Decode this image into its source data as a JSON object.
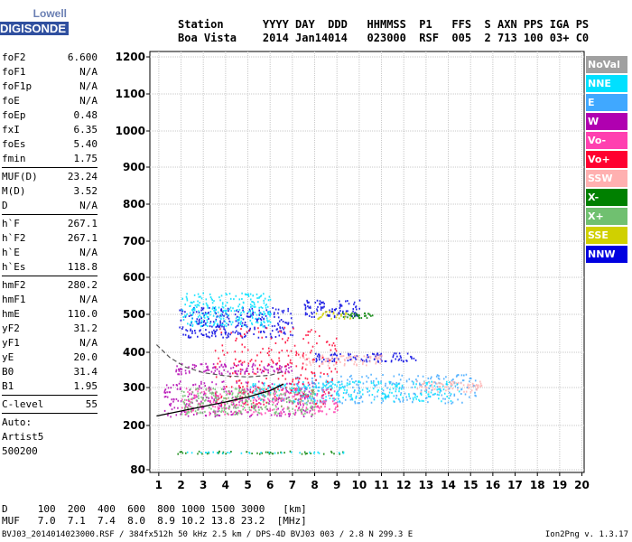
{
  "logo": {
    "line1": "Lowell",
    "line2": "DIGISONDE"
  },
  "header": {
    "row1": [
      "Station",
      "YYYY",
      "DAY",
      "DDD",
      "HHMMSS",
      "P1",
      "FFS",
      "S",
      "AXN",
      "PPS",
      "IGA",
      "PS"
    ],
    "row2": [
      "Boa Vista",
      "2014",
      "Jan14",
      "014",
      "023000",
      "RSF",
      "005",
      "2",
      "713",
      "100",
      "03+",
      "C0"
    ]
  },
  "params": [
    {
      "name": "foF2",
      "value": "6.600"
    },
    {
      "name": "foF1",
      "value": "N/A"
    },
    {
      "name": "foF1p",
      "value": "N/A"
    },
    {
      "name": "foE",
      "value": "N/A"
    },
    {
      "name": "foEp",
      "value": "0.48"
    },
    {
      "name": "fxI",
      "value": "6.35"
    },
    {
      "name": "foEs",
      "value": "5.40"
    },
    {
      "name": "fmin",
      "value": "1.75"
    },
    {
      "sep": true
    },
    {
      "name": "MUF(D)",
      "value": "23.24"
    },
    {
      "name": "M(D)",
      "value": "3.52"
    },
    {
      "name": "D",
      "value": "N/A"
    },
    {
      "sep": true
    },
    {
      "name": "h`F",
      "value": "267.1"
    },
    {
      "name": "h`F2",
      "value": "267.1"
    },
    {
      "name": "h`E",
      "value": "N/A"
    },
    {
      "name": "h`Es",
      "value": "118.8"
    },
    {
      "sep": true
    },
    {
      "name": "hmF2",
      "value": "280.2"
    },
    {
      "name": "hmF1",
      "value": "N/A"
    },
    {
      "name": "hmE",
      "value": "110.0"
    },
    {
      "name": "yF2",
      "value": "31.2"
    },
    {
      "name": "yF1",
      "value": "N/A"
    },
    {
      "name": "yE",
      "value": "20.0"
    },
    {
      "name": "B0",
      "value": "31.4"
    },
    {
      "name": "B1",
      "value": "1.95"
    },
    {
      "sep": true
    },
    {
      "name": "C-level",
      "value": "55"
    },
    {
      "sep": true
    }
  ],
  "auto_lines": [
    "Auto:",
    "Artist5",
    "500200"
  ],
  "legend": [
    {
      "label": "NoVal",
      "color": "#a0a0a0"
    },
    {
      "label": "NNE",
      "color": "#00e0ff"
    },
    {
      "label": "E",
      "color": "#40a8ff"
    },
    {
      "label": "W",
      "color": "#b000b0"
    },
    {
      "label": "Vo-",
      "color": "#ff40b0"
    },
    {
      "label": "Vo+",
      "color": "#ff0030"
    },
    {
      "label": "SSW",
      "color": "#ffb0b0"
    },
    {
      "label": "X-",
      "color": "#008000"
    },
    {
      "label": "X+",
      "color": "#70c070"
    },
    {
      "label": "SSE",
      "color": "#d0d000"
    },
    {
      "label": "NNW",
      "color": "#0000e0"
    }
  ],
  "footer": {
    "d_row": [
      "D",
      "100",
      "200",
      "400",
      "600",
      "800",
      "1000",
      "1500",
      "3000",
      "[km]"
    ],
    "muf_row": [
      "MUF",
      "7.0",
      "7.1",
      "7.4",
      "8.0",
      "8.9",
      "10.2",
      "13.8",
      "23.2",
      "[MHz]"
    ],
    "file_info": "BVJ03_2014014023000.RSF / 384fx512h 50 kHz 2.5 km / DPS-4D BVJ03 003 / 2.8 N 299.3 E",
    "version": "Ion2Png v. 1.3.17"
  },
  "chart_data": {
    "type": "scatter",
    "x_ticks": [
      1,
      2,
      3,
      4,
      5,
      6,
      7,
      8,
      9,
      10,
      11,
      12,
      13,
      14,
      15,
      16,
      17,
      18,
      19,
      20
    ],
    "y_ticks": [
      80,
      200,
      300,
      400,
      500,
      600,
      700,
      800,
      900,
      1000,
      1100,
      1200
    ],
    "xlim": [
      0.6,
      20.1
    ],
    "ylim": [
      80,
      1210
    ],
    "grid": true,
    "legend_position": "right",
    "echo_traces": [
      {
        "name": "NNW",
        "x_range": [
          1.9,
          7.0
        ],
        "h_range": [
          440,
          520
        ]
      },
      {
        "name": "NNE",
        "x_range": [
          2.0,
          6.0
        ],
        "h_range": [
          470,
          560
        ]
      },
      {
        "name": "NNW",
        "x_range": [
          7.5,
          10.0
        ],
        "h_range": [
          495,
          540
        ]
      },
      {
        "name": "SSE",
        "x_range": [
          8.0,
          9.6
        ],
        "h_range": [
          490,
          510
        ]
      },
      {
        "name": "X-",
        "x_range": [
          9.2,
          10.6
        ],
        "h_range": [
          492,
          506
        ]
      },
      {
        "name": "W",
        "x_range": [
          1.7,
          7.0
        ],
        "h_range": [
          340,
          370
        ]
      },
      {
        "name": "NNW",
        "x_range": [
          8.0,
          12.6
        ],
        "h_range": [
          375,
          400
        ]
      },
      {
        "name": "SSW",
        "x_range": [
          7.3,
          11.0
        ],
        "h_range": [
          365,
          395
        ]
      },
      {
        "name": "W",
        "x_range": [
          1.2,
          8.0
        ],
        "h_range": [
          225,
          320
        ]
      },
      {
        "name": "E",
        "x_range": [
          7.0,
          15.3
        ],
        "h_range": [
          260,
          340
        ]
      },
      {
        "name": "NNE",
        "x_range": [
          5.0,
          14.5
        ],
        "h_range": [
          265,
          320
        ]
      },
      {
        "name": "SSW",
        "x_range": [
          12.5,
          15.5
        ],
        "h_range": [
          290,
          320
        ]
      },
      {
        "name": "Vo+",
        "x_range": [
          3.5,
          9.0
        ],
        "h_range": [
          250,
          470
        ]
      },
      {
        "name": "Vo-",
        "x_range": [
          2.0,
          9.0
        ],
        "h_range": [
          230,
          300
        ]
      },
      {
        "name": "X+",
        "x_range": [
          2.0,
          8.0
        ],
        "h_range": [
          230,
          300
        ]
      },
      {
        "name": "X-",
        "x_range": [
          1.8,
          9.5
        ],
        "h_range": [
          125,
          132
        ]
      },
      {
        "name": "NNE",
        "x_range": [
          1.8,
          9.5
        ],
        "h_range": [
          127,
          130
        ]
      }
    ],
    "virtual_height_curve": {
      "x": [
        0.9,
        2,
        3,
        4,
        5,
        6,
        6.6
      ],
      "y": [
        225,
        238,
        250,
        262,
        275,
        292,
        310
      ]
    },
    "profile_curve": {
      "x": [
        0.9,
        1.5,
        2.2,
        3,
        4,
        5,
        6,
        6.6
      ],
      "y": [
        420,
        385,
        358,
        342,
        333,
        330,
        335,
        345
      ]
    }
  }
}
